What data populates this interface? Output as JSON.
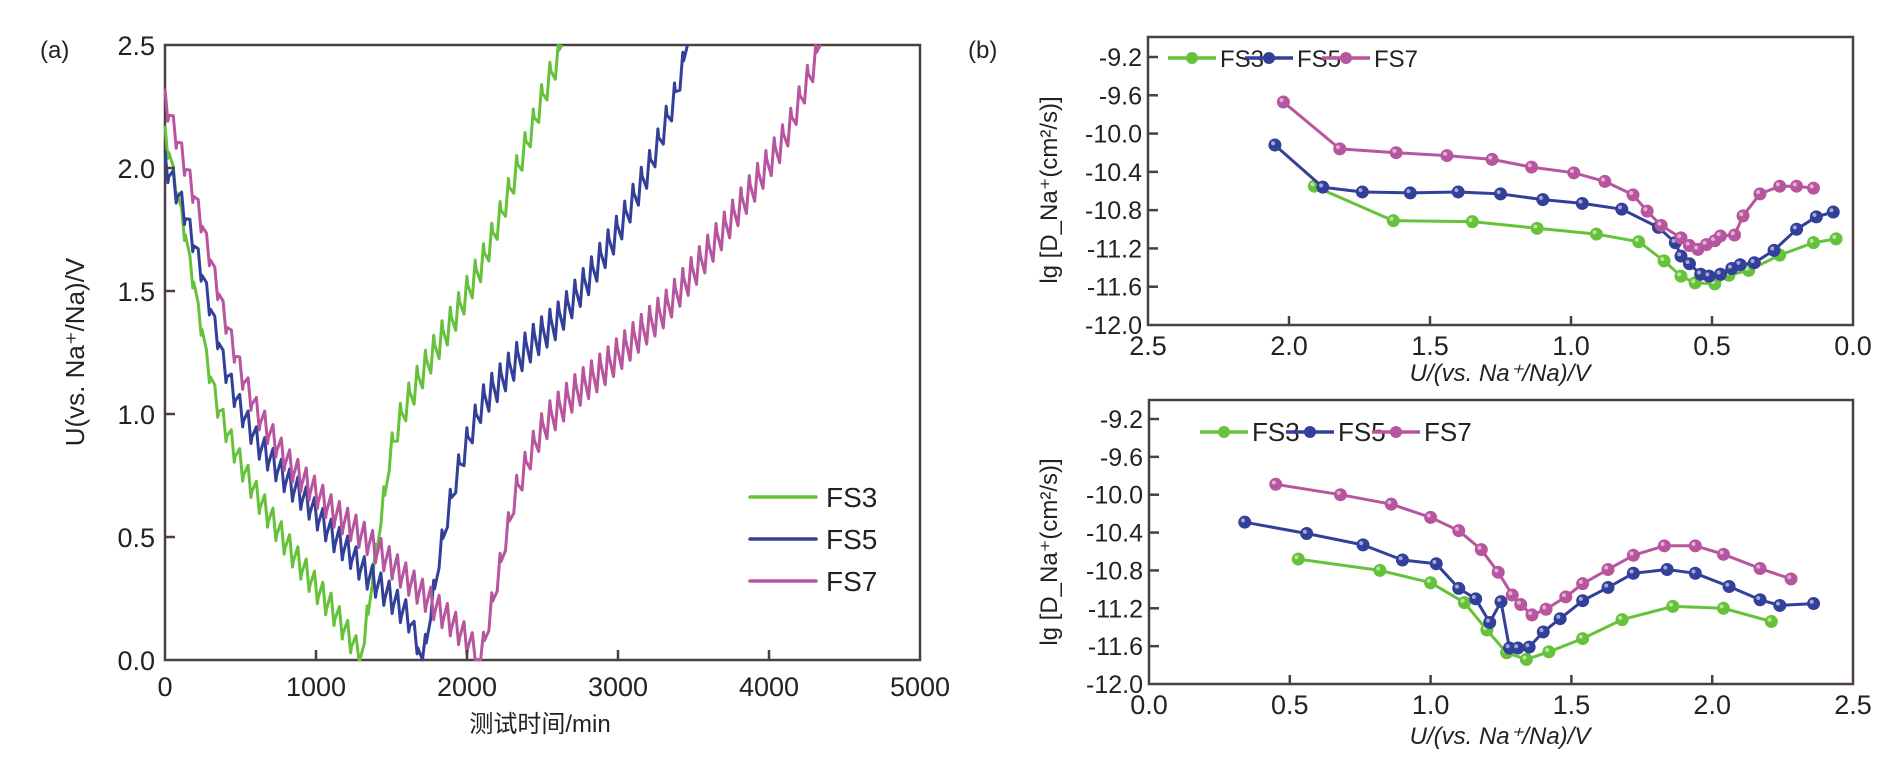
{
  "colors": {
    "FS3": "#66c23a",
    "FS5": "#33409a",
    "FS7": "#b8559f",
    "axis": "#4a4040",
    "text": "#222222"
  },
  "chart_data": [
    {
      "id": "a",
      "panel_label": "(a)",
      "type": "line",
      "title": "",
      "xlabel": "测试时间/min",
      "ylabel": "U(vs. Na⁺/Na)/V",
      "xlim": [
        0,
        5000
      ],
      "ylim": [
        0,
        2.5
      ],
      "xticks": [
        "0",
        "1000",
        "2000",
        "3000",
        "4000",
        "5000"
      ],
      "yticks": [
        "0.0",
        "0.5",
        "1.0",
        "1.5",
        "2.0",
        "2.5"
      ],
      "legend_position": "bottom-right",
      "grid": false,
      "series": [
        {
          "name": "FS3",
          "description": "GITT sawtooth: discharge from ~2.1 V at 0 min to 0 V at ~1290 min, then charge to 2.5 V at ~2630 min",
          "x": [
            0,
            100,
            200,
            300,
            400,
            500,
            600,
            700,
            800,
            900,
            1000,
            1100,
            1200,
            1290,
            1400,
            1500,
            1600,
            1700,
            1800,
            1900,
            2000,
            2100,
            2200,
            2300,
            2400,
            2500,
            2630
          ],
          "y": [
            2.1,
            1.8,
            1.45,
            1.1,
            0.92,
            0.78,
            0.66,
            0.56,
            0.46,
            0.37,
            0.28,
            0.2,
            0.1,
            0.0,
            0.5,
            0.9,
            1.05,
            1.17,
            1.28,
            1.38,
            1.5,
            1.62,
            1.78,
            1.95,
            2.12,
            2.3,
            2.5
          ]
        },
        {
          "name": "FS5",
          "description": "GITT sawtooth: discharge from ~2.0 V to 0 V at ~1700 min, then charge to 2.5 V at ~3460 min",
          "x": [
            0,
            100,
            200,
            300,
            400,
            500,
            600,
            700,
            800,
            900,
            1000,
            1100,
            1200,
            1300,
            1400,
            1500,
            1600,
            1700,
            1800,
            1900,
            2000,
            2100,
            2200,
            2300,
            2400,
            2600,
            2800,
            3000,
            3200,
            3350,
            3460
          ],
          "y": [
            2.0,
            1.85,
            1.65,
            1.4,
            1.15,
            1.0,
            0.88,
            0.8,
            0.72,
            0.66,
            0.58,
            0.5,
            0.44,
            0.36,
            0.3,
            0.24,
            0.17,
            0.0,
            0.4,
            0.7,
            0.9,
            1.05,
            1.12,
            1.2,
            1.27,
            1.38,
            1.55,
            1.75,
            2.0,
            2.25,
            2.5
          ]
        },
        {
          "name": "FS7",
          "description": "GITT sawtooth: discharge from ~2.25 V to 0 V at ~2080 min, then charge to 2.5 V at ~4340 min",
          "x": [
            0,
            100,
            200,
            300,
            400,
            500,
            600,
            700,
            800,
            900,
            1000,
            1100,
            1200,
            1300,
            1400,
            1500,
            1600,
            1700,
            1800,
            1900,
            2000,
            2080,
            2200,
            2300,
            2400,
            2500,
            2700,
            2900,
            3100,
            3300,
            3500,
            3700,
            3900,
            4100,
            4340
          ],
          "y": [
            2.25,
            2.05,
            1.85,
            1.6,
            1.35,
            1.15,
            1.0,
            0.9,
            0.8,
            0.73,
            0.67,
            0.6,
            0.55,
            0.5,
            0.44,
            0.38,
            0.32,
            0.26,
            0.2,
            0.14,
            0.07,
            0.0,
            0.35,
            0.65,
            0.82,
            0.95,
            1.08,
            1.18,
            1.3,
            1.42,
            1.58,
            1.75,
            1.93,
            2.12,
            2.5
          ]
        }
      ]
    },
    {
      "id": "b-top",
      "panel_label": "(b)",
      "type": "line",
      "title": "",
      "xlabel": "U/(vs. Na⁺/Na)/V",
      "ylabel": "lg [D_Na⁺(cm²/s)]",
      "xlim": [
        2.5,
        0.0
      ],
      "ylim": [
        -12.0,
        -9.0
      ],
      "xticks": [
        "2.5",
        "2.0",
        "1.5",
        "1.0",
        "0.5",
        "0.0"
      ],
      "yticks": [
        "-9.2",
        "-9.6",
        "-10.0",
        "-10.4",
        "-10.8",
        "-11.2",
        "-11.6",
        "-12.0"
      ],
      "legend_position": "top-center",
      "grid": false,
      "markers": true,
      "series": [
        {
          "name": "FS3",
          "x": [
            1.91,
            1.63,
            1.35,
            1.12,
            0.91,
            0.76,
            0.67,
            0.61,
            0.56,
            0.49,
            0.44,
            0.37,
            0.26,
            0.14,
            0.06
          ],
          "y": [
            -10.55,
            -10.91,
            -10.92,
            -10.99,
            -11.05,
            -11.13,
            -11.33,
            -11.49,
            -11.56,
            -11.57,
            -11.48,
            -11.43,
            -11.27,
            -11.14,
            -11.1
          ]
        },
        {
          "name": "FS5",
          "x": [
            2.05,
            1.88,
            1.74,
            1.57,
            1.4,
            1.25,
            1.1,
            0.96,
            0.82,
            0.69,
            0.63,
            0.61,
            0.58,
            0.54,
            0.51,
            0.47,
            0.43,
            0.4,
            0.35,
            0.28,
            0.2,
            0.13,
            0.07
          ],
          "y": [
            -10.12,
            -10.56,
            -10.61,
            -10.62,
            -10.61,
            -10.63,
            -10.69,
            -10.73,
            -10.79,
            -10.98,
            -11.14,
            -11.28,
            -11.36,
            -11.47,
            -11.49,
            -11.47,
            -11.41,
            -11.37,
            -11.35,
            -11.22,
            -11.0,
            -10.87,
            -10.82
          ]
        },
        {
          "name": "FS7",
          "x": [
            2.02,
            1.82,
            1.62,
            1.44,
            1.28,
            1.14,
            0.99,
            0.88,
            0.78,
            0.73,
            0.68,
            0.61,
            0.58,
            0.55,
            0.52,
            0.49,
            0.47,
            0.42,
            0.39,
            0.33,
            0.26,
            0.2,
            0.14
          ],
          "y": [
            -9.67,
            -10.16,
            -10.2,
            -10.23,
            -10.27,
            -10.35,
            -10.41,
            -10.5,
            -10.64,
            -10.81,
            -10.96,
            -11.09,
            -11.17,
            -11.21,
            -11.16,
            -11.12,
            -11.07,
            -11.06,
            -10.86,
            -10.63,
            -10.55,
            -10.55,
            -10.57
          ]
        }
      ]
    },
    {
      "id": "b-bottom",
      "panel_label": "",
      "type": "line",
      "title": "",
      "xlabel": "U/(vs. Na⁺/Na)/V",
      "ylabel": "lg [D_Na⁺(cm²/s)]",
      "xlim": [
        0.0,
        2.5
      ],
      "ylim": [
        -12.0,
        -9.0
      ],
      "xticks": [
        "0.0",
        "0.5",
        "1.0",
        "1.5",
        "2.0",
        "2.5"
      ],
      "yticks": [
        "-9.2",
        "-9.6",
        "-10.0",
        "-10.4",
        "-10.8",
        "-11.2",
        "-11.6",
        "-12.0"
      ],
      "legend_position": "top-left",
      "grid": false,
      "markers": true,
      "series": [
        {
          "name": "FS3",
          "x": [
            0.53,
            0.82,
            1.0,
            1.12,
            1.2,
            1.27,
            1.34,
            1.42,
            1.54,
            1.68,
            1.86,
            2.04,
            2.21
          ],
          "y": [
            -10.68,
            -10.8,
            -10.93,
            -11.14,
            -11.43,
            -11.67,
            -11.74,
            -11.66,
            -11.52,
            -11.32,
            -11.18,
            -11.2,
            -11.34
          ]
        },
        {
          "name": "FS5",
          "x": [
            0.34,
            0.56,
            0.76,
            0.9,
            1.02,
            1.1,
            1.16,
            1.21,
            1.25,
            1.28,
            1.31,
            1.35,
            1.4,
            1.46,
            1.54,
            1.63,
            1.72,
            1.84,
            1.94,
            2.06,
            2.17,
            2.24,
            2.36
          ],
          "y": [
            -10.29,
            -10.41,
            -10.53,
            -10.69,
            -10.73,
            -10.99,
            -11.1,
            -11.35,
            -11.13,
            -11.62,
            -11.62,
            -11.61,
            -11.45,
            -11.31,
            -11.12,
            -10.98,
            -10.83,
            -10.79,
            -10.83,
            -10.97,
            -11.11,
            -11.17,
            -11.15
          ]
        },
        {
          "name": "FS7",
          "x": [
            0.45,
            0.68,
            0.86,
            1.0,
            1.1,
            1.18,
            1.24,
            1.29,
            1.32,
            1.36,
            1.41,
            1.48,
            1.54,
            1.63,
            1.72,
            1.83,
            1.94,
            2.04,
            2.17,
            2.28
          ],
          "y": [
            -9.89,
            -10.0,
            -10.1,
            -10.24,
            -10.38,
            -10.58,
            -10.82,
            -11.06,
            -11.16,
            -11.27,
            -11.21,
            -11.08,
            -10.94,
            -10.79,
            -10.64,
            -10.54,
            -10.54,
            -10.63,
            -10.78,
            -10.89
          ]
        }
      ]
    }
  ]
}
